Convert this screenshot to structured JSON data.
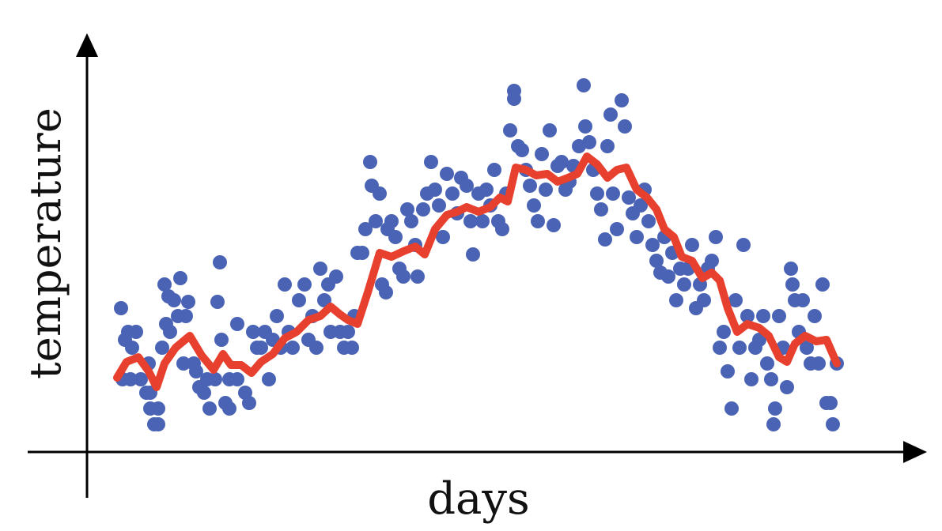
{
  "chart_data": {
    "type": "scatter",
    "x_label": "days",
    "y_label": "temperature",
    "xlim": [
      0,
      1060
    ],
    "ylim": [
      0,
      527
    ],
    "series": [
      {
        "type": "scatter",
        "color": "#4a63b5",
        "x": [
          43,
          48,
          52,
          57,
          62,
          45,
          55,
          68,
          75,
          80,
          85,
          90,
          78,
          95,
          100,
          105,
          98,
          103,
          110,
          118,
          115,
          125,
          128,
          122,
          135,
          138,
          142,
          148,
          155,
          152,
          162,
          168,
          165,
          170,
          175,
          180,
          180,
          190,
          190,
          200,
          205,
          210,
          215,
          220,
          230,
          225,
          235,
          240,
          245,
          250,
          255,
          260,
          268,
          275,
          280,
          285,
          290,
          295,
          300,
          305,
          308,
          315,
          320,
          325,
          330,
          335,
          338,
          342,
          348,
          352,
          358,
          360,
          365,
          370,
          373,
          378,
          380,
          385,
          390,
          395,
          400,
          405,
          410,
          415,
          418,
          425,
          430,
          435,
          440,
          445,
          450,
          455,
          462,
          468,
          473,
          480,
          485,
          488,
          495,
          500,
          505,
          510,
          515,
          520,
          525,
          530,
          535,
          540,
          545,
          550,
          555,
          560,
          565,
          570,
          575,
          580,
          585,
          590,
          595,
          600,
          605,
          610,
          615,
          622,
          628,
          630,
          635,
          640,
          645,
          650,
          655,
          658,
          662,
          665,
          670,
          676,
          680,
          685,
          690,
          695,
          700,
          705,
          710,
          715,
          720,
          725,
          730,
          735,
          740,
          745,
          750,
          755,
          760,
          765,
          770,
          775,
          780,
          785,
          790,
          795,
          800,
          805,
          810,
          815,
          820,
          825,
          830,
          835,
          840,
          845,
          850,
          855,
          860,
          865,
          870,
          875,
          880,
          885,
          890,
          895,
          900,
          905,
          910,
          915,
          920,
          925,
          930,
          935,
          940,
          943,
          948,
          868,
          90,
          80,
          540,
          892
        ],
        "y": [
          182,
          142,
          152,
          132,
          152,
          92,
          92,
          92,
          75,
          55,
          35,
          55,
          112,
          132,
          162,
          152,
          212,
          197,
          192,
          220,
          172,
          172,
          190,
          112,
          112,
          102,
          82,
          75,
          55,
          92,
          92,
          240,
          190,
          142,
          62,
          55,
          92,
          162,
          92,
          75,
          62,
          152,
          132,
          132,
          92,
          152,
          142,
          172,
          132,
          212,
          152,
          132,
          192,
          212,
          142,
          172,
          132,
          232,
          192,
          212,
          152,
          222,
          152,
          132,
          152,
          132,
          172,
          252,
          252,
          282,
          367,
          337,
          292,
          327,
          212,
          202,
          282,
          292,
          272,
          232,
          222,
          307,
          292,
          262,
          222,
          307,
          327,
          367,
          332,
          312,
          272,
          352,
          327,
          302,
          347,
          337,
          292,
          250,
          327,
          292,
          332,
          312,
          357,
          292,
          282,
          327,
          407,
          447,
          387,
          382,
          357,
          337,
          312,
          292,
          377,
          332,
          407,
          287,
          362,
          367,
          332,
          342,
          362,
          387,
          464,
          412,
          392,
          357,
          327,
          307,
          269,
          387,
          427,
          327,
          282,
          445,
          412,
          322,
          302,
          272,
          312,
          332,
          292,
          262,
          242,
          227,
          272,
          222,
          252,
          192,
          232,
          212,
          232,
          262,
          182,
          212,
          192,
          232,
          242,
          272,
          132,
          152,
          102,
          55,
          192,
          132,
          262,
          172,
          92,
          132,
          142,
          172,
          112,
          92,
          55,
          172,
          132,
          82,
          232,
          192,
          152,
          192,
          132,
          112,
          172,
          112,
          212,
          62,
          62,
          35,
          112,
          35,
          35,
          75,
          457,
          212
        ]
      },
      {
        "type": "line",
        "color": "#e8402e",
        "x": [
          38,
          50,
          65,
          78,
          88,
          98,
          112,
          130,
          145,
          160,
          172,
          182,
          195,
          208,
          220,
          235,
          250,
          265,
          280,
          295,
          308,
          320,
          330,
          342,
          355,
          370,
          385,
          400,
          415,
          427,
          440,
          455,
          468,
          480,
          495,
          510,
          522,
          532,
          542,
          555,
          568,
          582,
          595,
          608,
          620,
          632,
          645,
          658,
          670,
          682,
          695,
          708,
          720,
          730,
          742,
          752,
          765,
          778,
          790,
          800,
          810,
          822,
          835,
          850,
          862,
          875,
          885,
          895,
          908,
          922,
          935,
          948
        ],
        "y": [
          94,
          114,
          120,
          102,
          82,
          112,
          132,
          147,
          122,
          104,
          124,
          110,
          110,
          100,
          114,
          124,
          144,
          152,
          167,
          172,
          184,
          174,
          167,
          162,
          202,
          252,
          247,
          254,
          260,
          250,
          282,
          300,
          304,
          310,
          304,
          310,
          322,
          317,
          360,
          357,
          350,
          352,
          342,
          347,
          352,
          374,
          364,
          347,
          357,
          360,
          332,
          322,
          307,
          282,
          272,
          247,
          242,
          220,
          227,
          217,
          182,
          152,
          162,
          157,
          147,
          120,
          114,
          137,
          147,
          140,
          142,
          112
        ]
      }
    ]
  }
}
